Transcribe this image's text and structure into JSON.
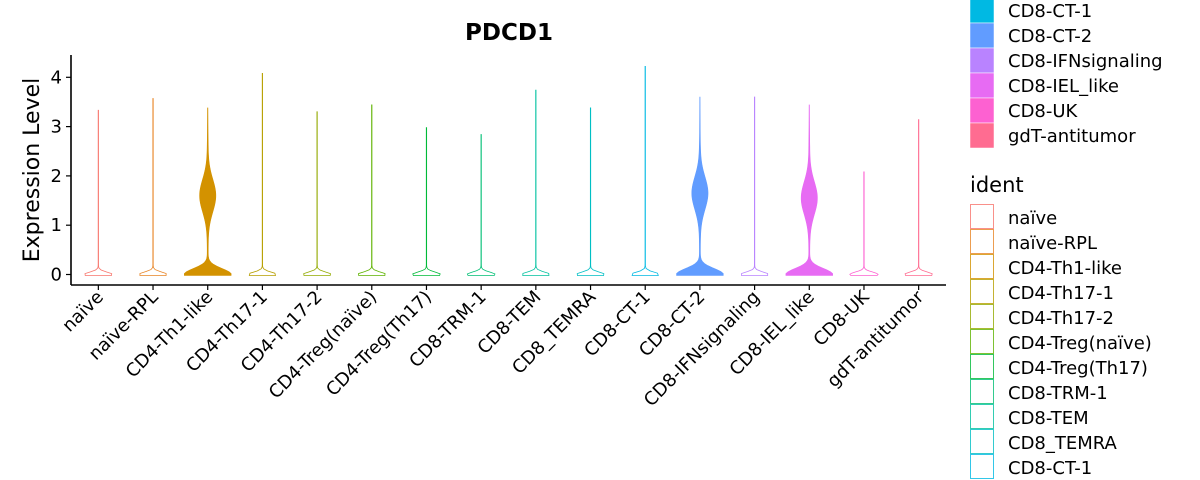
{
  "chart_data": {
    "type": "violin",
    "title": "PDCD1",
    "xlabel": "",
    "ylabel": "Expression Level",
    "ylim": [
      -0.2,
      4.4
    ],
    "yticks": [
      0,
      1,
      2,
      3,
      4
    ],
    "grid": false,
    "legend_position": "right",
    "legend_title": "ident",
    "categories": [
      "naïve",
      "naïve-RPL",
      "CD4-Th1-like",
      "CD4-Th17-1",
      "CD4-Th17-2",
      "CD4-Treg(naïve)",
      "CD4-Treg(Th17)",
      "CD8-TRM-1",
      "CD8-TEM",
      "CD8_TEMRA",
      "CD8-CT-1",
      "CD8-CT-2",
      "CD8-IFNsignaling",
      "CD8-IEL_like",
      "CD8-UK",
      "gdT-antitumor"
    ],
    "colors": [
      "#F8766D",
      "#E88526",
      "#D39200",
      "#B79F00",
      "#93AA00",
      "#5EB300",
      "#00BA38",
      "#00BF74",
      "#00C19F",
      "#00BFC4",
      "#00B9E3",
      "#619CFF",
      "#B983FF",
      "#E76BF3",
      "#FD61D1",
      "#FF6C91"
    ],
    "max_values": [
      3.33,
      3.57,
      3.38,
      4.08,
      3.3,
      3.44,
      2.98,
      2.84,
      3.74,
      3.38,
      4.22,
      3.6,
      3.6,
      3.44,
      2.08,
      3.14
    ],
    "distributions": [
      {
        "category": "CD4-Th1-like",
        "mode_high": 1.6
      },
      {
        "category": "CD8-CT-2",
        "mode_high": 1.65
      },
      {
        "category": "CD8-IEL_like",
        "mode_high": 1.55
      }
    ],
    "legend_visible_top": [
      "CD8-CT-1",
      "CD8-CT-2",
      "CD8-IFNsignaling",
      "CD8-IEL_like",
      "CD8-UK",
      "gdT-antitumor"
    ],
    "legend_visible_bottom": [
      "naïve",
      "naïve-RPL",
      "CD4-Th1-like",
      "CD4-Th17-1",
      "CD4-Th17-2",
      "CD4-Treg(naïve)",
      "CD4-Treg(Th17)",
      "CD8-TRM-1",
      "CD8-TEM",
      "CD8_TEMRA",
      "CD8-CT-1"
    ]
  }
}
